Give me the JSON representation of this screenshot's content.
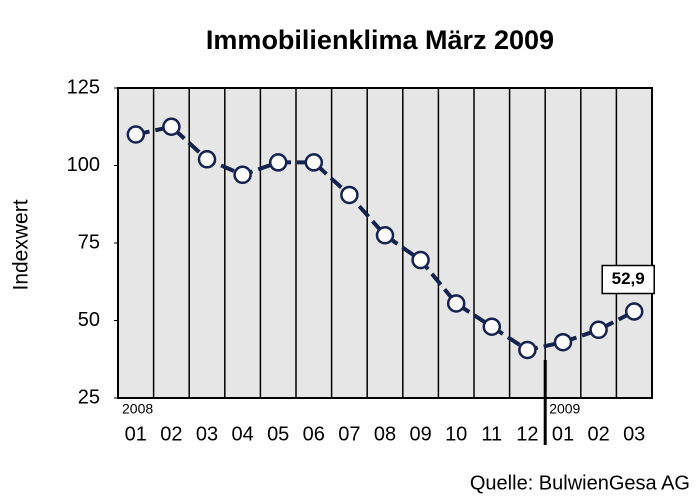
{
  "chart_data": {
    "type": "line",
    "title": "Immobilienklima März 2009",
    "y_label": "Indexwert",
    "source": "Quelle: BulwienGesa AG",
    "categories": [
      "01",
      "02",
      "03",
      "04",
      "05",
      "06",
      "07",
      "08",
      "09",
      "10",
      "11",
      "12",
      "01",
      "02",
      "03"
    ],
    "annotations": [
      "2008",
      "2009"
    ],
    "values": [
      110,
      112.5,
      102,
      97,
      101,
      101,
      90.5,
      77.5,
      69.5,
      55.5,
      48,
      40.5,
      43,
      47,
      52.9
    ],
    "value_labels": [
      null,
      null,
      null,
      null,
      null,
      null,
      null,
      null,
      null,
      null,
      null,
      null,
      null,
      null,
      "52,9"
    ],
    "color": "#14224f",
    "ylim": [
      25,
      125
    ],
    "yticks": [
      25,
      50,
      75,
      100,
      125
    ],
    "grid": "x"
  }
}
